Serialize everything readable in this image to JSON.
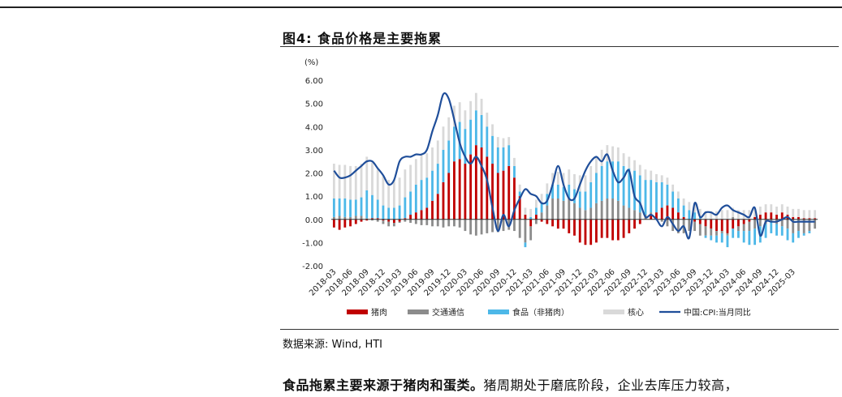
{
  "header": {
    "figure_title": "图4:  食品价格是主要拖累",
    "source": "数据来源:  Wind,  HTI",
    "paragraph_bold": "食品拖累主要来源于猪肉和蛋类。",
    "paragraph_rest": "猪周期处于磨底阶段，企业去库压力较高，"
  },
  "chart_data": {
    "type": "bar",
    "unit_label": "(%)",
    "ylim": [
      -2,
      6
    ],
    "yticks": [
      -2,
      -1,
      0,
      1,
      2,
      3,
      4,
      5,
      6
    ],
    "ytick_labels": [
      "-2.00",
      "-1.00",
      "0.00",
      "1.00",
      "2.00",
      "3.00",
      "4.00",
      "5.00",
      "6.00"
    ],
    "x_start": "2018-03",
    "x_count": 89,
    "x_tick_labels": [
      "2018-03",
      "2018-06",
      "2018-09",
      "2018-12",
      "2019-03",
      "2019-06",
      "2019-09",
      "2019-12",
      "2020-03",
      "2020-06",
      "2020-09",
      "2020-12",
      "2021-03",
      "2021-06",
      "2021-09",
      "2021-12",
      "2022-03",
      "2022-06",
      "2022-09",
      "2022-12",
      "2023-03",
      "2023-06",
      "2023-09",
      "2023-12",
      "2024-03",
      "2024-06",
      "2024-09",
      "2024-12",
      "2025-03"
    ],
    "legend": [
      "猪肉",
      "交通通信",
      "食品（非猪肉）",
      "核心",
      "中国:CPI:当月同比"
    ],
    "series": [
      {
        "name": "猪肉",
        "kind": "bar",
        "color": "#C00000",
        "values": [
          -0.35,
          -0.45,
          -0.35,
          -0.3,
          -0.2,
          -0.1,
          -0.05,
          0.05,
          0.05,
          -0.05,
          -0.1,
          -0.15,
          -0.1,
          0.05,
          0.2,
          0.3,
          0.4,
          0.5,
          0.8,
          1.1,
          1.6,
          2.0,
          2.5,
          2.6,
          2.4,
          2.8,
          3.2,
          3.1,
          2.7,
          2.4,
          2.0,
          2.1,
          2.3,
          1.8,
          1.0,
          0.2,
          -0.3,
          0.2,
          -0.1,
          -0.2,
          -0.3,
          -0.4,
          -0.4,
          -0.6,
          -0.7,
          -1.0,
          -1.1,
          -1.1,
          -1.0,
          -0.8,
          -0.8,
          -0.9,
          -0.9,
          -0.8,
          -0.6,
          -0.4,
          -0.2,
          0.0,
          0.2,
          0.3,
          0.5,
          0.6,
          0.5,
          0.3,
          0.1,
          0.0,
          -0.1,
          -0.2,
          -0.3,
          -0.4,
          -0.5,
          -0.5,
          -0.6,
          -0.4,
          -0.3,
          -0.2,
          -0.1,
          0.1,
          0.2,
          0.3,
          0.3,
          0.2,
          0.3,
          0.2,
          0.1,
          0.1,
          0.05,
          0.05,
          0.05
        ]
      },
      {
        "name": "交通通信",
        "kind": "bar",
        "color": "#8C8C8C",
        "values": [
          0.1,
          0.15,
          0.1,
          0.1,
          0.15,
          0.15,
          0.05,
          -0.05,
          -0.1,
          -0.15,
          -0.2,
          -0.15,
          -0.05,
          -0.1,
          -0.15,
          -0.2,
          -0.25,
          -0.25,
          -0.3,
          -0.3,
          -0.35,
          -0.3,
          -0.3,
          -0.35,
          -0.5,
          -0.65,
          -0.7,
          -0.65,
          -0.6,
          -0.55,
          -0.55,
          -0.5,
          -0.45,
          -0.5,
          -0.8,
          -1.0,
          -0.6,
          -0.2,
          0.3,
          0.6,
          0.9,
          0.9,
          0.8,
          0.9,
          0.7,
          0.5,
          0.4,
          0.5,
          0.7,
          0.8,
          0.9,
          0.9,
          0.8,
          0.6,
          0.5,
          0.4,
          0.3,
          0.2,
          0.1,
          0.0,
          -0.1,
          -0.3,
          -0.5,
          -0.6,
          -0.6,
          -0.5,
          -0.4,
          -0.5,
          -0.4,
          -0.3,
          -0.2,
          -0.1,
          -0.1,
          0.1,
          -0.2,
          -0.3,
          -0.4,
          -0.4,
          -0.3,
          -0.2,
          -0.1,
          -0.2,
          -0.3,
          -0.4,
          -0.6,
          -0.5,
          -0.6,
          -0.5,
          -0.4
        ]
      },
      {
        "name": "食品（非猪肉）",
        "kind": "bar",
        "color": "#4DB8E8",
        "values": [
          0.8,
          0.75,
          0.8,
          0.75,
          0.7,
          0.8,
          1.2,
          1.0,
          0.8,
          0.6,
          0.5,
          0.5,
          0.6,
          0.9,
          1.0,
          1.2,
          1.3,
          1.3,
          1.3,
          1.3,
          1.4,
          1.4,
          1.5,
          1.6,
          1.5,
          1.5,
          1.5,
          1.4,
          1.3,
          1.2,
          1.1,
          1.0,
          0.9,
          0.5,
          0.2,
          -0.2,
          0.1,
          0.3,
          0.4,
          0.5,
          0.6,
          0.6,
          0.6,
          0.6,
          0.6,
          0.7,
          0.8,
          1.1,
          1.3,
          1.5,
          1.6,
          1.6,
          1.7,
          1.7,
          1.7,
          1.7,
          1.6,
          1.5,
          1.4,
          1.3,
          1.1,
          0.9,
          0.7,
          0.6,
          0.5,
          0.4,
          0.3,
          0.1,
          -0.1,
          -0.2,
          -0.3,
          -0.4,
          -0.5,
          -0.4,
          -0.3,
          -0.5,
          -0.6,
          -0.7,
          -0.7,
          -0.6,
          -0.5,
          -0.5,
          -0.4,
          -0.5,
          -0.4,
          -0.3,
          -0.1,
          -0.1,
          0.0
        ]
      },
      {
        "name": "核心",
        "kind": "bar",
        "color": "#D9D9D9",
        "values": [
          1.5,
          1.45,
          1.45,
          1.45,
          1.45,
          1.45,
          1.45,
          1.4,
          1.3,
          1.25,
          1.2,
          1.2,
          1.2,
          1.2,
          1.15,
          1.1,
          1.1,
          1.05,
          1.0,
          1.0,
          1.0,
          1.0,
          0.9,
          0.85,
          0.8,
          0.8,
          0.75,
          0.7,
          0.6,
          0.5,
          0.45,
          0.4,
          0.35,
          0.35,
          0.3,
          0.3,
          0.35,
          0.35,
          0.4,
          0.45,
          0.5,
          0.55,
          0.6,
          0.65,
          0.65,
          0.7,
          0.7,
          0.7,
          0.7,
          0.7,
          0.7,
          0.65,
          0.6,
          0.55,
          0.5,
          0.45,
          0.45,
          0.45,
          0.4,
          0.35,
          0.3,
          0.3,
          0.3,
          0.3,
          0.3,
          0.35,
          0.35,
          0.35,
          0.35,
          0.35,
          0.35,
          0.4,
          0.4,
          0.4,
          0.4,
          0.4,
          0.4,
          0.35,
          0.35,
          0.35,
          0.35,
          0.35,
          0.35,
          0.35,
          0.35,
          0.35,
          0.35,
          0.35,
          0.35
        ]
      },
      {
        "name": "中国:CPI:当月同比",
        "kind": "line",
        "color": "#1F4E9A",
        "values": [
          2.1,
          1.8,
          1.8,
          1.9,
          2.1,
          2.3,
          2.5,
          2.5,
          2.2,
          1.9,
          1.5,
          1.7,
          2.5,
          2.7,
          2.7,
          2.8,
          2.8,
          3.0,
          3.8,
          4.5,
          5.4,
          5.2,
          4.3,
          3.3,
          2.7,
          2.4,
          2.7,
          2.3,
          1.7,
          0.5,
          -0.5,
          0.2,
          -0.3,
          0.4,
          0.9,
          1.3,
          1.1,
          1.0,
          0.7,
          0.8,
          1.5,
          2.3,
          1.5,
          0.9,
          0.9,
          1.5,
          2.1,
          2.5,
          2.7,
          2.5,
          2.8,
          2.1,
          1.6,
          1.8,
          2.1,
          1.0,
          0.7,
          0.1,
          0.2,
          0.0,
          -0.3,
          0.1,
          -0.2,
          -0.5,
          -0.3,
          -0.8,
          0.7,
          0.1,
          0.3,
          0.3,
          0.2,
          0.5,
          0.6,
          0.4,
          0.3,
          0.2,
          0.1,
          0.5,
          -0.7,
          -0.1,
          -0.1,
          -0.1,
          0.0,
          0.1,
          -0.1,
          -0.1,
          -0.1,
          -0.1,
          -0.1
        ]
      }
    ]
  }
}
